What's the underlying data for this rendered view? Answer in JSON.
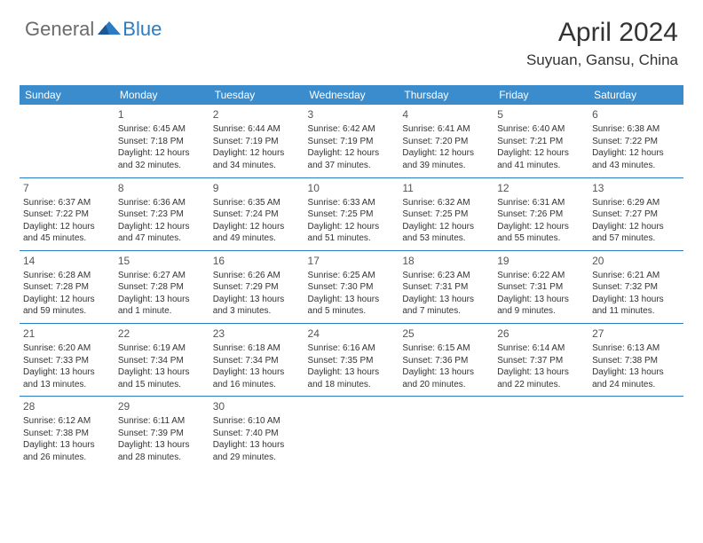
{
  "logo": {
    "general": "General",
    "blue": "Blue"
  },
  "title": "April 2024",
  "location": "Suyuan, Gansu, China",
  "colors": {
    "header_bg": "#3b8ccc",
    "line": "#2b7cc4",
    "text": "#333333",
    "logo_gray": "#6b6b6b",
    "logo_blue": "#2b7cc4"
  },
  "weekdays": [
    "Sunday",
    "Monday",
    "Tuesday",
    "Wednesday",
    "Thursday",
    "Friday",
    "Saturday"
  ],
  "weeks": [
    [
      null,
      {
        "n": "1",
        "sr": "6:45 AM",
        "ss": "7:18 PM",
        "d1": "12 hours",
        "d2": "and 32 minutes."
      },
      {
        "n": "2",
        "sr": "6:44 AM",
        "ss": "7:19 PM",
        "d1": "12 hours",
        "d2": "and 34 minutes."
      },
      {
        "n": "3",
        "sr": "6:42 AM",
        "ss": "7:19 PM",
        "d1": "12 hours",
        "d2": "and 37 minutes."
      },
      {
        "n": "4",
        "sr": "6:41 AM",
        "ss": "7:20 PM",
        "d1": "12 hours",
        "d2": "and 39 minutes."
      },
      {
        "n": "5",
        "sr": "6:40 AM",
        "ss": "7:21 PM",
        "d1": "12 hours",
        "d2": "and 41 minutes."
      },
      {
        "n": "6",
        "sr": "6:38 AM",
        "ss": "7:22 PM",
        "d1": "12 hours",
        "d2": "and 43 minutes."
      }
    ],
    [
      {
        "n": "7",
        "sr": "6:37 AM",
        "ss": "7:22 PM",
        "d1": "12 hours",
        "d2": "and 45 minutes."
      },
      {
        "n": "8",
        "sr": "6:36 AM",
        "ss": "7:23 PM",
        "d1": "12 hours",
        "d2": "and 47 minutes."
      },
      {
        "n": "9",
        "sr": "6:35 AM",
        "ss": "7:24 PM",
        "d1": "12 hours",
        "d2": "and 49 minutes."
      },
      {
        "n": "10",
        "sr": "6:33 AM",
        "ss": "7:25 PM",
        "d1": "12 hours",
        "d2": "and 51 minutes."
      },
      {
        "n": "11",
        "sr": "6:32 AM",
        "ss": "7:25 PM",
        "d1": "12 hours",
        "d2": "and 53 minutes."
      },
      {
        "n": "12",
        "sr": "6:31 AM",
        "ss": "7:26 PM",
        "d1": "12 hours",
        "d2": "and 55 minutes."
      },
      {
        "n": "13",
        "sr": "6:29 AM",
        "ss": "7:27 PM",
        "d1": "12 hours",
        "d2": "and 57 minutes."
      }
    ],
    [
      {
        "n": "14",
        "sr": "6:28 AM",
        "ss": "7:28 PM",
        "d1": "12 hours",
        "d2": "and 59 minutes."
      },
      {
        "n": "15",
        "sr": "6:27 AM",
        "ss": "7:28 PM",
        "d1": "13 hours",
        "d2": "and 1 minute."
      },
      {
        "n": "16",
        "sr": "6:26 AM",
        "ss": "7:29 PM",
        "d1": "13 hours",
        "d2": "and 3 minutes."
      },
      {
        "n": "17",
        "sr": "6:25 AM",
        "ss": "7:30 PM",
        "d1": "13 hours",
        "d2": "and 5 minutes."
      },
      {
        "n": "18",
        "sr": "6:23 AM",
        "ss": "7:31 PM",
        "d1": "13 hours",
        "d2": "and 7 minutes."
      },
      {
        "n": "19",
        "sr": "6:22 AM",
        "ss": "7:31 PM",
        "d1": "13 hours",
        "d2": "and 9 minutes."
      },
      {
        "n": "20",
        "sr": "6:21 AM",
        "ss": "7:32 PM",
        "d1": "13 hours",
        "d2": "and 11 minutes."
      }
    ],
    [
      {
        "n": "21",
        "sr": "6:20 AM",
        "ss": "7:33 PM",
        "d1": "13 hours",
        "d2": "and 13 minutes."
      },
      {
        "n": "22",
        "sr": "6:19 AM",
        "ss": "7:34 PM",
        "d1": "13 hours",
        "d2": "and 15 minutes."
      },
      {
        "n": "23",
        "sr": "6:18 AM",
        "ss": "7:34 PM",
        "d1": "13 hours",
        "d2": "and 16 minutes."
      },
      {
        "n": "24",
        "sr": "6:16 AM",
        "ss": "7:35 PM",
        "d1": "13 hours",
        "d2": "and 18 minutes."
      },
      {
        "n": "25",
        "sr": "6:15 AM",
        "ss": "7:36 PM",
        "d1": "13 hours",
        "d2": "and 20 minutes."
      },
      {
        "n": "26",
        "sr": "6:14 AM",
        "ss": "7:37 PM",
        "d1": "13 hours",
        "d2": "and 22 minutes."
      },
      {
        "n": "27",
        "sr": "6:13 AM",
        "ss": "7:38 PM",
        "d1": "13 hours",
        "d2": "and 24 minutes."
      }
    ],
    [
      {
        "n": "28",
        "sr": "6:12 AM",
        "ss": "7:38 PM",
        "d1": "13 hours",
        "d2": "and 26 minutes."
      },
      {
        "n": "29",
        "sr": "6:11 AM",
        "ss": "7:39 PM",
        "d1": "13 hours",
        "d2": "and 28 minutes."
      },
      {
        "n": "30",
        "sr": "6:10 AM",
        "ss": "7:40 PM",
        "d1": "13 hours",
        "d2": "and 29 minutes."
      },
      null,
      null,
      null,
      null
    ]
  ],
  "labels": {
    "sunrise": "Sunrise:",
    "sunset": "Sunset:",
    "daylight": "Daylight:"
  }
}
